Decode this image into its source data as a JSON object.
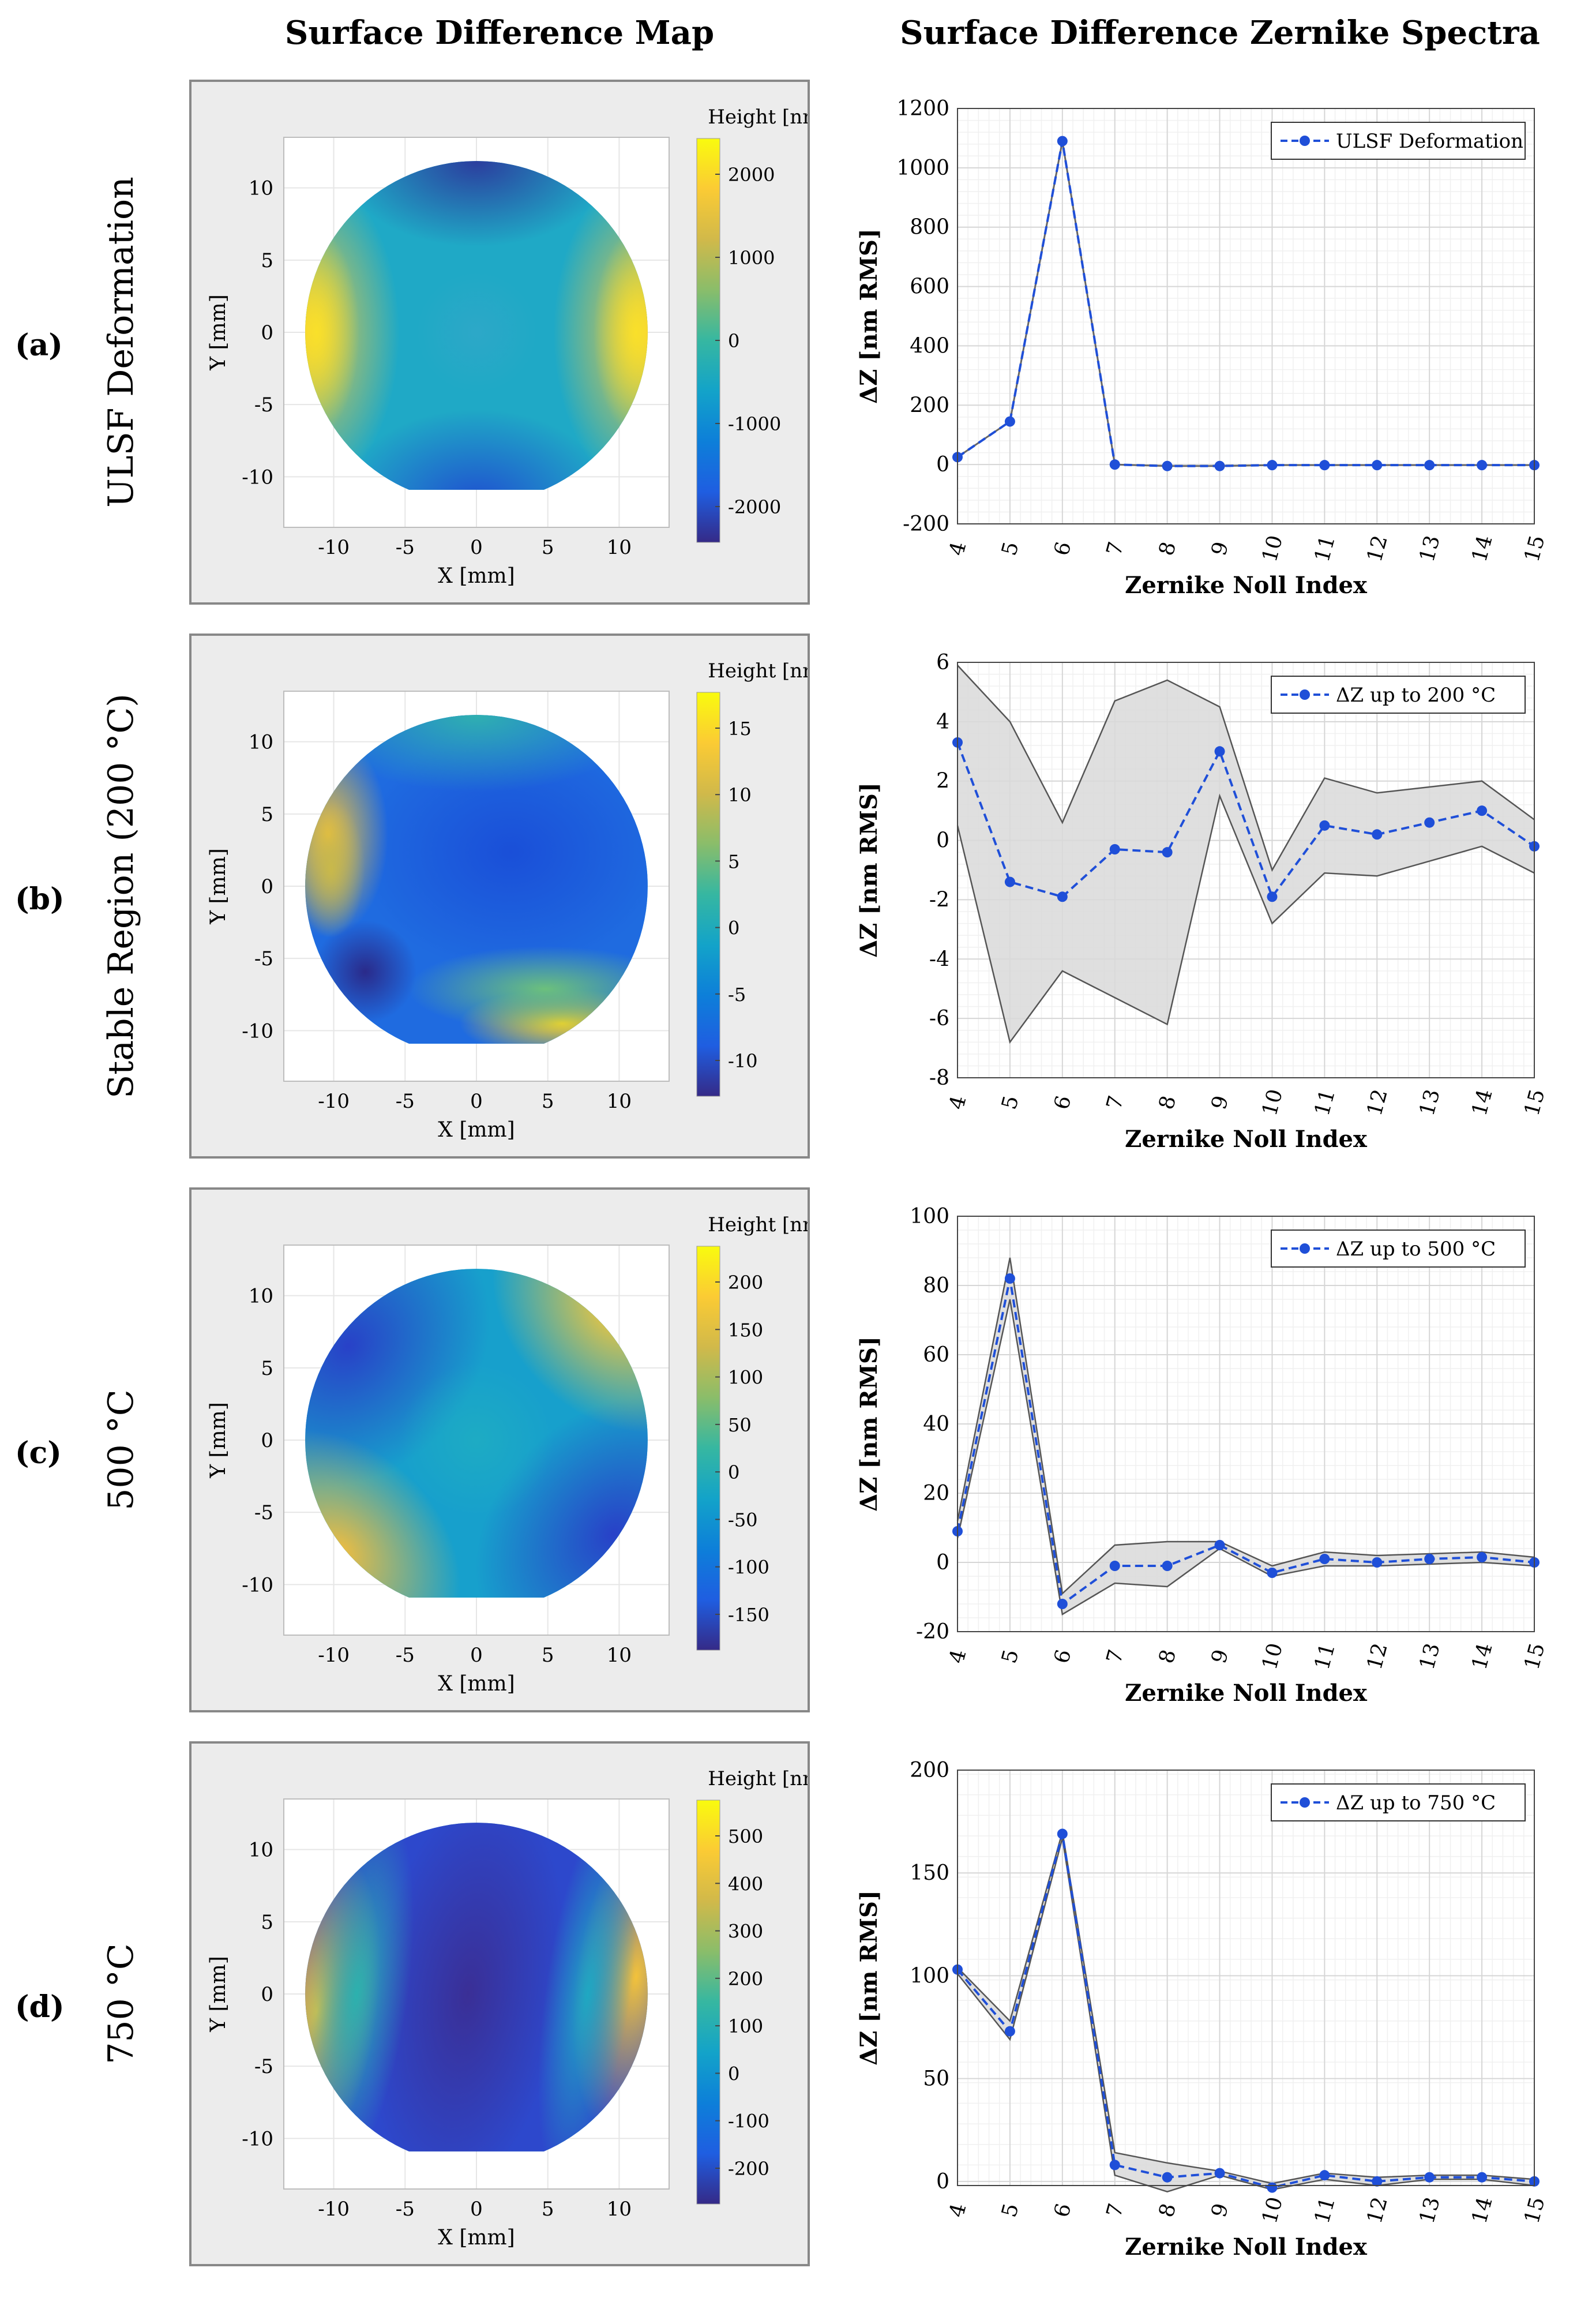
{
  "headers": {
    "left": "Surface Difference Map",
    "right": "Surface Difference Zernike Spectra"
  },
  "colors": {
    "line": "#1f4fd8",
    "band_fill": "#d9d9d9",
    "band_edge": "#555555"
  },
  "rows": [
    {
      "label": "(a)",
      "description": "ULSF Deformation",
      "map": {
        "colorbar_title": "Height [nm]",
        "colorbar_ticks": [
          "2000",
          "1000",
          "0",
          "-1000",
          "-2000"
        ],
        "x_ticks": [
          "-10",
          "-5",
          "0",
          "5",
          "10"
        ],
        "y_ticks": [
          "10",
          "5",
          "0",
          "-5",
          "-10"
        ],
        "xlabel": "X [mm]",
        "ylabel": "Y [mm]",
        "pattern": "saddle"
      }
    },
    {
      "label": "(b)",
      "description": "Stable Region (200 °C)",
      "map": {
        "colorbar_title": "Height [nm]",
        "colorbar_ticks": [
          "15",
          "10",
          "5",
          "0",
          "-5",
          "-10"
        ],
        "x_ticks": [
          "-10",
          "-5",
          "0",
          "5",
          "10"
        ],
        "y_ticks": [
          "10",
          "5",
          "0",
          "-5",
          "-10"
        ],
        "xlabel": "X [mm]",
        "ylabel": "Y [mm]",
        "pattern": "irregular"
      }
    },
    {
      "label": "(c)",
      "description": "500 °C",
      "map": {
        "colorbar_title": "Height [nm]",
        "colorbar_ticks": [
          "200",
          "150",
          "100",
          "50",
          "0",
          "-50",
          "-100",
          "-150"
        ],
        "x_ticks": [
          "-10",
          "-5",
          "0",
          "5",
          "10"
        ],
        "y_ticks": [
          "10",
          "5",
          "0",
          "-5",
          "-10"
        ],
        "xlabel": "X [mm]",
        "ylabel": "Y [mm]",
        "pattern": "diagonal-saddle"
      }
    },
    {
      "label": "(d)",
      "description": "750 °C",
      "map": {
        "colorbar_title": "Height [nm]",
        "colorbar_ticks": [
          "500",
          "400",
          "300",
          "200",
          "100",
          "0",
          "-100",
          "-200"
        ],
        "x_ticks": [
          "-10",
          "-5",
          "0",
          "5",
          "10"
        ],
        "y_ticks": [
          "10",
          "5",
          "0",
          "-5",
          "-10"
        ],
        "xlabel": "X [mm]",
        "ylabel": "Y [mm]",
        "pattern": "vertical-bands"
      }
    }
  ],
  "chart_data": [
    {
      "type": "line",
      "legend": "ULSF Deformation",
      "legend_position": "top-right",
      "xlabel": "Zernike Noll Index",
      "ylabel": "ΔZ [nm RMS]",
      "x": [
        4,
        5,
        6,
        7,
        8,
        9,
        10,
        11,
        12,
        13,
        14,
        15
      ],
      "values": [
        25,
        145,
        1090,
        0,
        -5,
        -5,
        -2,
        -2,
        -2,
        -2,
        -2,
        -2
      ],
      "band_upper": null,
      "band_lower": null,
      "ylim": [
        -200,
        1200
      ],
      "yticks": [
        -200,
        0,
        200,
        400,
        600,
        800,
        1000,
        1200
      ],
      "grid": true
    },
    {
      "type": "line",
      "legend": "ΔZ up to 200 °C",
      "legend_position": "top-right",
      "xlabel": "Zernike Noll Index",
      "ylabel": "ΔZ [nm RMS]",
      "x": [
        4,
        5,
        6,
        7,
        8,
        9,
        10,
        11,
        12,
        13,
        14,
        15
      ],
      "values": [
        3.3,
        -1.4,
        -1.9,
        -0.3,
        -0.4,
        3.0,
        -1.9,
        0.5,
        0.2,
        0.6,
        1.0,
        -0.2
      ],
      "band_upper": [
        5.9,
        4.0,
        0.6,
        4.7,
        5.4,
        4.5,
        -1.0,
        2.1,
        1.6,
        1.8,
        2.0,
        0.7
      ],
      "band_lower": [
        0.5,
        -6.8,
        -4.4,
        -5.3,
        -6.2,
        1.5,
        -2.8,
        -1.1,
        -1.2,
        -0.7,
        -0.2,
        -1.1
      ],
      "ylim": [
        -8,
        6
      ],
      "yticks": [
        -8,
        -6,
        -4,
        -2,
        0,
        2,
        4,
        6
      ],
      "grid": true
    },
    {
      "type": "line",
      "legend": "ΔZ up to 500 °C",
      "legend_position": "top-right",
      "xlabel": "Zernike Noll Index",
      "ylabel": "ΔZ [nm RMS]",
      "x": [
        4,
        5,
        6,
        7,
        8,
        9,
        10,
        11,
        12,
        13,
        14,
        15
      ],
      "values": [
        9,
        82,
        -12,
        -1,
        -1,
        5,
        -3,
        1,
        0,
        1,
        1.5,
        0
      ],
      "band_upper": [
        12,
        88,
        -9,
        5,
        6,
        6,
        -1,
        3,
        2,
        2.5,
        3,
        1.5
      ],
      "band_lower": [
        7,
        76,
        -15,
        -6,
        -7,
        4,
        -4,
        -1,
        -1,
        -0.5,
        0,
        -1
      ],
      "ylim": [
        -20,
        100
      ],
      "yticks": [
        -20,
        0,
        20,
        40,
        60,
        80,
        100
      ],
      "grid": true
    },
    {
      "type": "line",
      "legend": "ΔZ up to 750 °C",
      "legend_position": "top-right",
      "xlabel": "Zernike Noll Index",
      "ylabel": "ΔZ [nm RMS]",
      "x": [
        4,
        5,
        6,
        7,
        8,
        9,
        10,
        11,
        12,
        13,
        14,
        15
      ],
      "values": [
        103,
        73,
        169,
        8,
        2,
        4,
        -3,
        3,
        0,
        2,
        2,
        0
      ],
      "band_upper": [
        104,
        78,
        170,
        14,
        9,
        5,
        -1,
        4,
        2,
        3,
        3,
        1
      ],
      "band_lower": [
        101,
        69,
        167,
        3,
        -5,
        3,
        -4,
        1,
        -2,
        1,
        1,
        -2
      ],
      "ylim": [
        -2,
        200
      ],
      "yticks": [
        0,
        50,
        100,
        150,
        200
      ],
      "grid": true
    }
  ]
}
